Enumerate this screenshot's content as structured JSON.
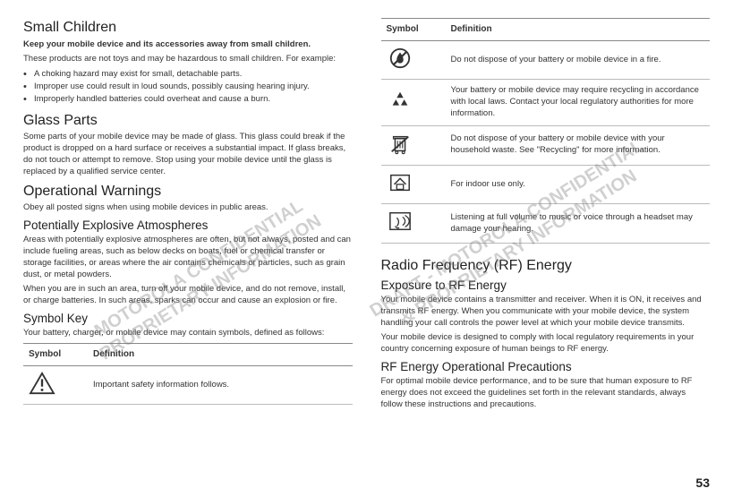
{
  "page_number": "53",
  "watermark_left": "MOTOROLA CONFIDENTIAL\nPROPRIETARY INFORMATION",
  "watermark_right": "DRAFT - MOTOROLA CONFIDENTIAL\n& PROPRIETARY INFORMATION",
  "left": {
    "h_small_children": "Small Children",
    "sc_bold": "Keep your mobile device and its accessories away from small children.",
    "sc_para": "These products are not toys and may be hazardous to small children. For example:",
    "sc_li1": "A choking hazard may exist for small, detachable parts.",
    "sc_li2": "Improper use could result in loud sounds, possibly causing hearing injury.",
    "sc_li3": "Improperly handled batteries could overheat and cause a burn.",
    "h_glass": "Glass Parts",
    "glass_para": "Some parts of your mobile device may be made of glass. This glass could break if the product is dropped on a hard surface or receives a substantial impact. If glass breaks, do not touch or attempt to remove. Stop using your mobile device until the glass is replaced by a qualified service center.",
    "h_opwarn": "Operational Warnings",
    "opwarn_para": "Obey all posted signs when using mobile devices in public areas.",
    "h_pea": "Potentially Explosive Atmospheres",
    "pea_p1": "Areas with potentially explosive atmospheres are often, but not always, posted and can include fueling areas, such as below decks on boats, fuel or chemical transfer or storage facilities, or areas where the air contains chemicals or particles, such as grain dust, or metal powders.",
    "pea_p2": "When you are in such an area, turn off your mobile device, and do not remove, install, or charge batteries. In such areas, sparks can occur and cause an explosion or fire.",
    "h_symkey": "Symbol Key",
    "symkey_para": "Your battery, charger, or mobile device may contain symbols, defined as follows:",
    "th_symbol": "Symbol",
    "th_def": "Definition",
    "row1_def": "Important safety information follows."
  },
  "right": {
    "th_symbol": "Symbol",
    "th_def": "Definition",
    "r1": "Do not dispose of your battery or mobile device in a fire.",
    "r2": "Your battery or mobile device may require recycling in accordance with local laws. Contact your local regulatory authorities for more information.",
    "r3": "Do not dispose of your battery or mobile device with your household waste. See \"Recycling\" for more information.",
    "r4": "For indoor use only.",
    "r5": "Listening at full volume to music or voice through a headset may damage your hearing.",
    "h_rf": "Radio Frequency (RF) Energy",
    "h_exposure": "Exposure to RF Energy",
    "exp_p1": "Your mobile device contains a transmitter and receiver. When it is ON, it receives and transmits RF energy. When you communicate with your mobile device, the system handling your call controls the power level at which your mobile device transmits.",
    "exp_p2": "Your mobile device is designed to comply with local regulatory requirements in your country concerning exposure of human beings to RF energy.",
    "h_rfop": "RF Energy Operational Precautions",
    "rfop_p": "For optimal mobile device performance, and to be sure that human exposure to RF energy does not exceed the guidelines set forth in the relevant standards, always follow these instructions and precautions."
  }
}
